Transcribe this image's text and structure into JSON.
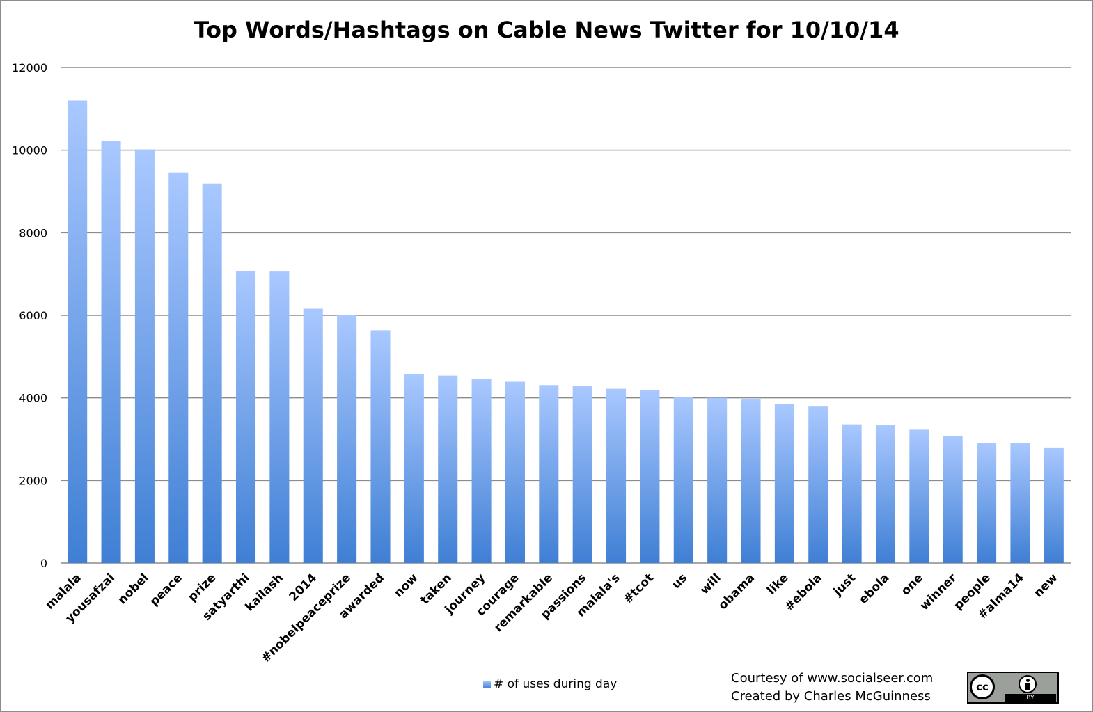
{
  "chart_data": {
    "type": "bar",
    "title": "Top Words/Hashtags on Cable News Twitter for 10/10/14",
    "xlabel": "",
    "ylabel": "",
    "ylim": [
      0,
      12000
    ],
    "yticks": [
      0,
      2000,
      4000,
      6000,
      8000,
      10000,
      12000
    ],
    "grid": true,
    "legend_position": "bottom",
    "categories": [
      "malala",
      "yousafzai",
      "nobel",
      "peace",
      "prize",
      "satyarthi",
      "kailash",
      "2014",
      "#nobelpeaceprize",
      "awarded",
      "now",
      "taken",
      "journey",
      "courage",
      "remarkable",
      "passions",
      "malala's",
      "#tcot",
      "us",
      "will",
      "obama",
      "like",
      "#ebola",
      "just",
      "ebola",
      "one",
      "winner",
      "people",
      "#alma14",
      "new"
    ],
    "series": [
      {
        "name": "# of uses during day",
        "values": [
          11200,
          10220,
          10020,
          9460,
          9190,
          7070,
          7060,
          6160,
          6000,
          5640,
          4570,
          4540,
          4450,
          4390,
          4310,
          4290,
          4220,
          4180,
          4010,
          4000,
          3960,
          3850,
          3790,
          3360,
          3340,
          3230,
          3070,
          2910,
          2910,
          2800
        ]
      }
    ],
    "colors": {
      "bar_top": "#a9c8ff",
      "bar_bottom": "#3f7fd4",
      "grid": "#8c8c8c"
    }
  },
  "credits": {
    "line1": "Courtesy of www.socialseer.com",
    "line2": "Created by Charles McGuinness"
  },
  "license_badge": {
    "icon": "creative-commons-by-icon",
    "cc_text": "cc",
    "by_text": "BY"
  }
}
